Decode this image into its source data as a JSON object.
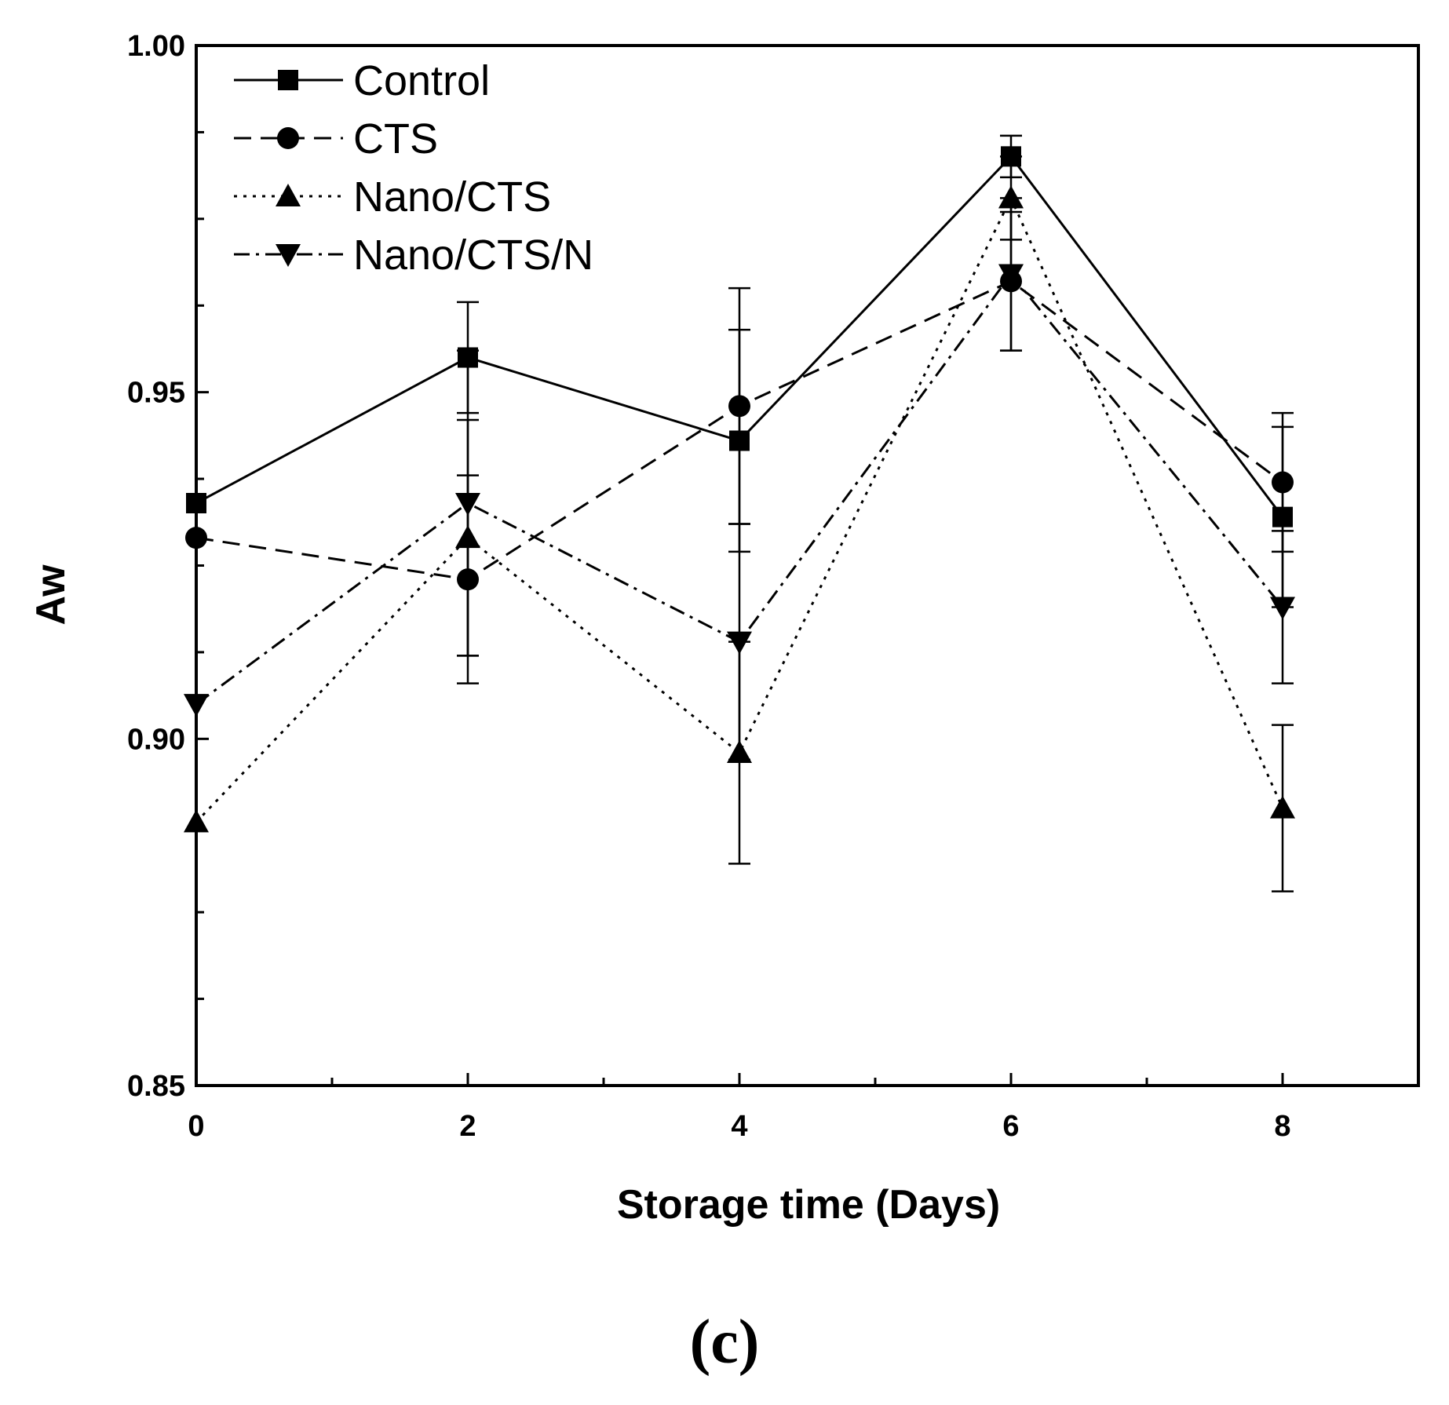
{
  "chart_data": {
    "type": "line",
    "title": "",
    "xlabel": "Storage time (Days)",
    "ylabel": "Aw",
    "xlim": [
      0,
      9
    ],
    "ylim": [
      0.85,
      1.0
    ],
    "x_ticks": [
      0,
      2,
      4,
      6,
      8
    ],
    "x_tick_labels": [
      "0",
      "2",
      "4",
      "6",
      "8"
    ],
    "y_ticks": [
      0.85,
      0.9,
      0.95,
      1.0
    ],
    "y_tick_labels": [
      "0.85",
      "0.90",
      "0.95",
      "1.00"
    ],
    "grid": false,
    "legend_position": "top-left",
    "x": [
      0,
      2,
      4,
      6,
      8
    ],
    "series": [
      {
        "name": "Control",
        "line_style": "solid",
        "marker": "square",
        "values": [
          0.934,
          0.955,
          0.943,
          0.984,
          0.932
        ],
        "errors": [
          0,
          0.008,
          0.016,
          0.003,
          0.013
        ]
      },
      {
        "name": "CTS",
        "line_style": "dashed",
        "marker": "circle",
        "values": [
          0.929,
          0.923,
          0.948,
          0.966,
          0.937
        ],
        "errors": [
          0,
          0.015,
          0.017,
          0.01,
          0.01
        ]
      },
      {
        "name": "Nano/CTS",
        "line_style": "dotted",
        "marker": "triangle-up",
        "values": [
          0.888,
          0.929,
          0.898,
          0.978,
          0.89
        ],
        "errors": [
          0,
          0.017,
          0.016,
          0.006,
          0.012
        ]
      },
      {
        "name": "Nano/CTS/N",
        "line_style": "dash-dot",
        "marker": "triangle-down",
        "values": [
          0.905,
          0.934,
          0.914,
          0.967,
          0.919
        ],
        "errors": [
          0,
          0.022,
          0.017,
          0.011,
          0.011
        ]
      }
    ]
  },
  "panel_label": "(c)"
}
